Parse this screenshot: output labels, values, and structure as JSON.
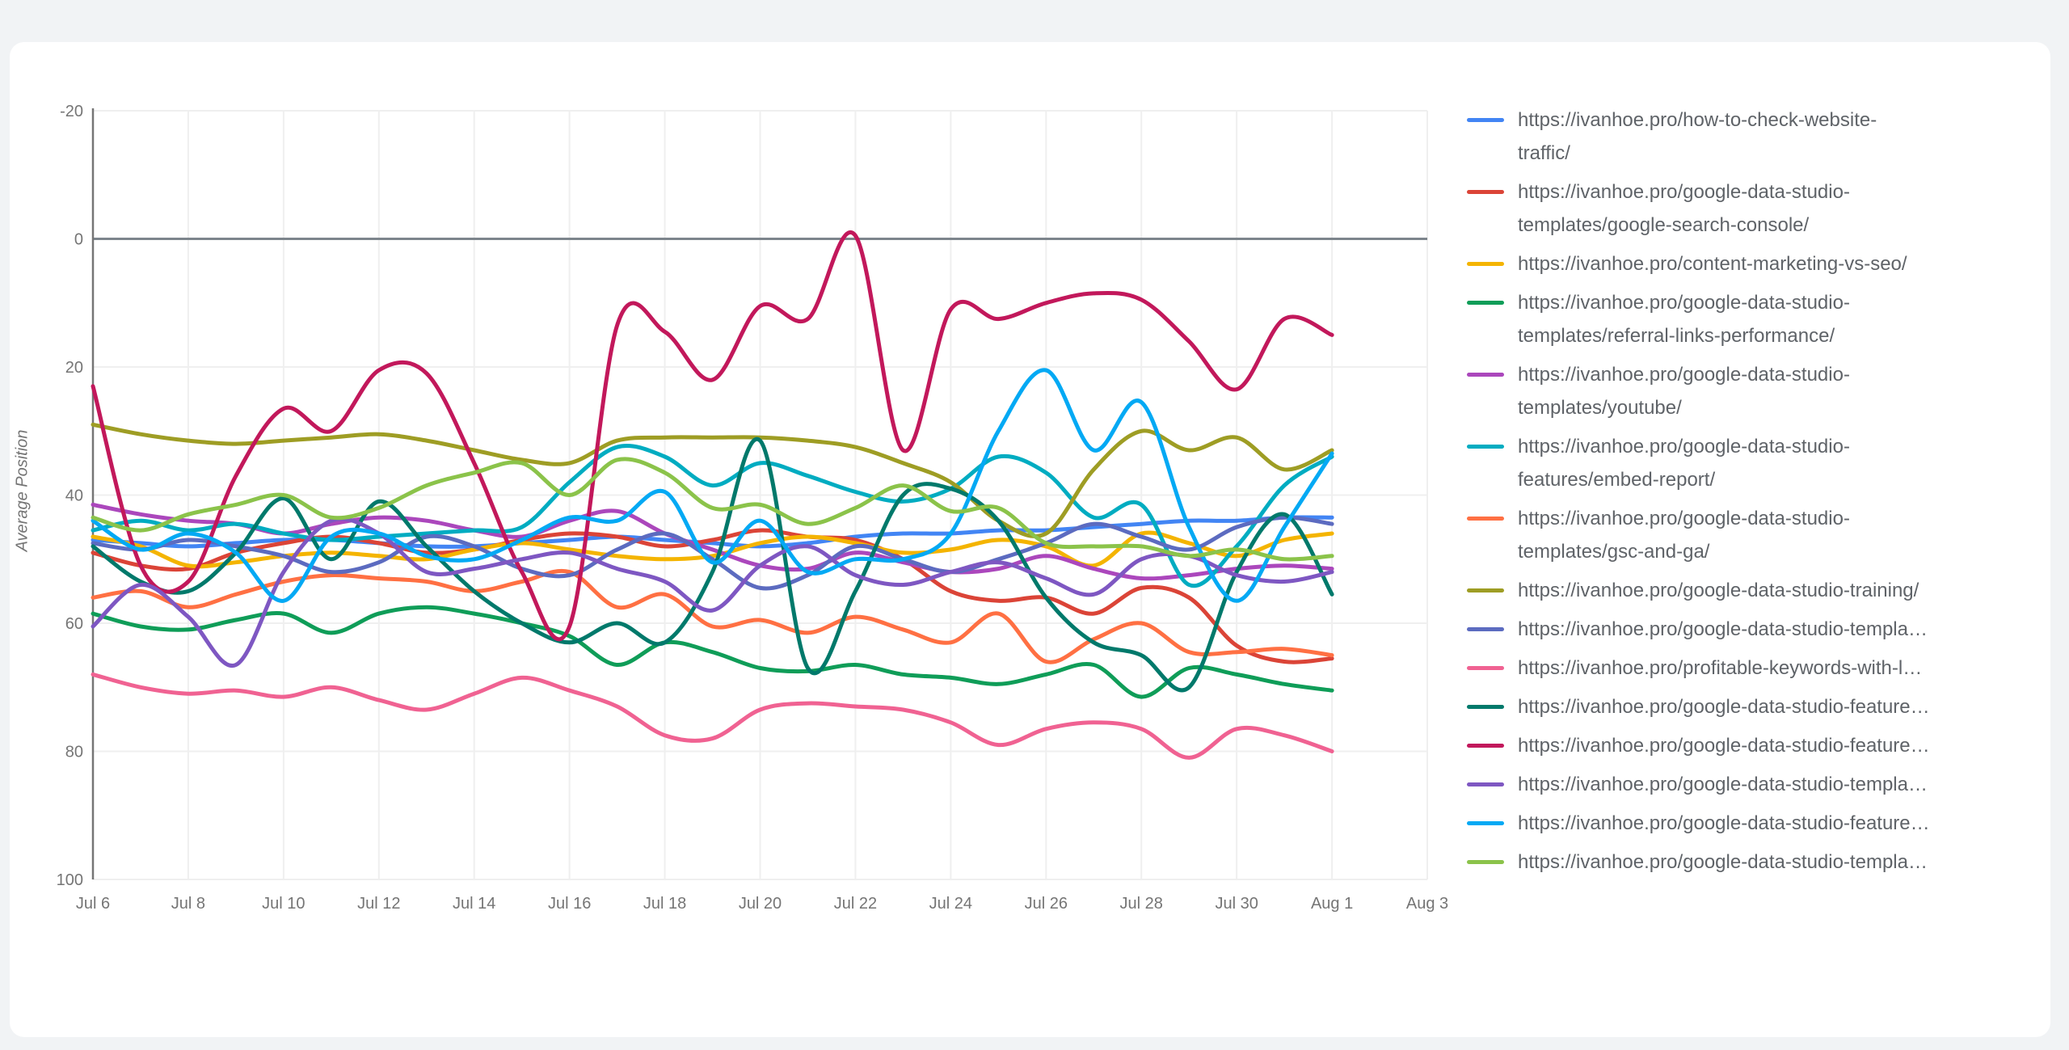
{
  "page": {
    "background_color": "#f1f3f5",
    "card_background_color": "#ffffff"
  },
  "chart_data": {
    "type": "line",
    "title": "",
    "xlabel": "",
    "ylabel": "Average Position",
    "y_ticks": [
      -20,
      0,
      20,
      40,
      60,
      80,
      100
    ],
    "y_range": [
      -20,
      100
    ],
    "y_axis_inverted_downward": true,
    "grid": true,
    "legend_position": "right",
    "x_axis_tick_labels": [
      "Jul 6",
      "Jul 8",
      "Jul 10",
      "Jul 12",
      "Jul 14",
      "Jul 16",
      "Jul 18",
      "Jul 20",
      "Jul 22",
      "Jul 24",
      "Jul 26",
      "Jul 28",
      "Jul 30",
      "Aug 1",
      "Aug 3"
    ],
    "point_dates": [
      "Jul 6",
      "Jul 7",
      "Jul 8",
      "Jul 9",
      "Jul 10",
      "Jul 11",
      "Jul 12",
      "Jul 13",
      "Jul 14",
      "Jul 15",
      "Jul 16",
      "Jul 17",
      "Jul 18",
      "Jul 19",
      "Jul 20",
      "Jul 21",
      "Jul 22",
      "Jul 23",
      "Jul 24",
      "Jul 25",
      "Jul 26",
      "Jul 27",
      "Jul 28",
      "Jul 29",
      "Jul 30",
      "Jul 31",
      "Aug 1"
    ],
    "style": {
      "grid_color": "#efefef",
      "zero_line_color": "#7d858c",
      "axis_line_color": "#757575",
      "tick_label_color": "#757575",
      "legend_text_color": "#5f6368",
      "line_width": 5
    },
    "series": [
      {
        "label": "https://ivanhoe.pro/how-to-check-website-\ntraffic/",
        "color": "#4285F4",
        "values": [
          47,
          47.5,
          48,
          47.5,
          47,
          47,
          47.5,
          48,
          48,
          47.5,
          47,
          46.5,
          47,
          47.5,
          48,
          47.5,
          46.5,
          46,
          46,
          45.5,
          45.5,
          45,
          44.5,
          44,
          44,
          43.5,
          43.5
        ]
      },
      {
        "label": "https://ivanhoe.pro/google-data-studio-\ntemplates/google-search-console/",
        "color": "#DB4437",
        "values": [
          49,
          51,
          51.5,
          49,
          47.5,
          46.5,
          47.5,
          49,
          48.5,
          47,
          46,
          46.5,
          48,
          47,
          45.5,
          46.5,
          47,
          50,
          55,
          56.5,
          56,
          58.5,
          54.5,
          56,
          63.5,
          66,
          65.5
        ]
      },
      {
        "label": "https://ivanhoe.pro/content-marketing-vs-seo/",
        "color": "#F4B400",
        "values": [
          46.5,
          48,
          51,
          50.5,
          49.5,
          49,
          49.5,
          50,
          48.5,
          47.5,
          48.5,
          49.5,
          50,
          49.5,
          47.5,
          46.5,
          47.5,
          49,
          48.5,
          47,
          48,
          51,
          46,
          47.5,
          49.5,
          47,
          46
        ]
      },
      {
        "label": "https://ivanhoe.pro/google-data-studio-\ntemplates/referral-links-performance/",
        "color": "#0F9D58",
        "values": [
          58.5,
          60.5,
          61,
          59.5,
          58.5,
          61.5,
          58.5,
          57.5,
          58.5,
          60,
          62,
          66.5,
          63,
          64.5,
          67,
          67.5,
          66.5,
          68,
          68.5,
          69.5,
          68,
          66.5,
          71.5,
          67,
          68,
          69.5,
          70.5
        ]
      },
      {
        "label": "https://ivanhoe.pro/google-data-studio-\ntemplates/youtube/",
        "color": "#AB47BC",
        "values": [
          41.5,
          43,
          44,
          44.5,
          46,
          44.5,
          43.5,
          44,
          45.5,
          46.5,
          44,
          42.5,
          46,
          48.5,
          51,
          51.5,
          49,
          50.5,
          52,
          51.5,
          49.5,
          51.5,
          53,
          52.5,
          51.5,
          51,
          51.5
        ]
      },
      {
        "label": "https://ivanhoe.pro/google-data-studio-\nfeatures/embed-report/",
        "color": "#00ACC1",
        "values": [
          45.5,
          44,
          45.5,
          44.5,
          46,
          47,
          46.5,
          46,
          45.5,
          45,
          38,
          32.5,
          34,
          38.5,
          35,
          37,
          39.5,
          41,
          39,
          34,
          36.5,
          43.5,
          41.5,
          54,
          48,
          38.5,
          34
        ]
      },
      {
        "label": "https://ivanhoe.pro/google-data-studio-\ntemplates/gsc-and-ga/",
        "color": "#FF7043",
        "values": [
          56,
          55,
          57.5,
          55.5,
          53.5,
          52.5,
          53,
          53.5,
          55,
          53.5,
          52,
          57.5,
          55.5,
          60.5,
          59.5,
          61.5,
          59,
          61,
          63,
          58.5,
          66,
          62.5,
          60,
          64.5,
          64.5,
          64,
          65
        ]
      },
      {
        "label": "https://ivanhoe.pro/google-data-studio-training/",
        "color": "#9E9D24",
        "values": [
          29,
          30.5,
          31.5,
          32,
          31.5,
          31,
          30.5,
          31.5,
          33,
          34.5,
          35,
          31.5,
          31,
          31,
          31,
          31.5,
          32.5,
          35,
          38,
          44,
          46,
          36,
          30,
          33,
          31,
          36,
          33
        ]
      },
      {
        "label": "https://ivanhoe.pro/google-data-studio-templa…",
        "color": "#5C6BC0",
        "values": [
          47.5,
          48.5,
          47,
          48,
          49.5,
          52,
          50.5,
          46.5,
          48,
          51.5,
          52.5,
          48.5,
          46,
          50,
          54.5,
          52.5,
          48,
          50,
          52,
          50,
          47.5,
          44.5,
          46.5,
          48.5,
          45,
          43.5,
          44.5
        ]
      },
      {
        "label": "https://ivanhoe.pro/profitable-keywords-with-l…",
        "color": "#F06292",
        "values": [
          68,
          70,
          71,
          70.5,
          71.5,
          70,
          72,
          73.5,
          71,
          68.5,
          70.5,
          73,
          77.5,
          78,
          73.5,
          72.5,
          73,
          73.5,
          75.5,
          79,
          76.5,
          75.5,
          76.5,
          81,
          76.5,
          77.5,
          80
        ]
      },
      {
        "label": "https://ivanhoe.pro/google-data-studio-feature…",
        "color": "#00796B",
        "values": [
          48,
          53.5,
          55,
          49,
          40.5,
          50,
          41,
          48,
          55,
          60,
          63,
          60,
          63,
          52,
          31.5,
          67,
          55,
          40,
          39,
          44,
          56,
          63,
          65,
          70,
          52,
          43,
          55.5
        ]
      },
      {
        "label": "https://ivanhoe.pro/google-data-studio-feature…",
        "color": "#C2185B",
        "values": [
          23,
          51,
          53.5,
          37,
          26.5,
          30,
          20.5,
          21,
          35,
          52,
          60.5,
          13.5,
          14.5,
          22,
          10.5,
          12.5,
          -0.5,
          33,
          11,
          12.5,
          10,
          8.5,
          9.5,
          16,
          23.5,
          12.5,
          15
        ]
      },
      {
        "label": "https://ivanhoe.pro/google-data-studio-templa…",
        "color": "#7E57C2",
        "values": [
          60.5,
          54,
          59,
          66.5,
          52,
          44,
          46,
          52,
          51.5,
          50,
          49,
          51.5,
          53.5,
          58,
          51,
          48,
          52.5,
          54,
          52,
          50.5,
          53,
          55.5,
          50,
          49.5,
          52.5,
          53.5,
          52
        ]
      },
      {
        "label": "https://ivanhoe.pro/google-data-studio-feature…",
        "color": "#03A9F4",
        "values": [
          44,
          48.5,
          46,
          49,
          56.5,
          46.5,
          46,
          49.5,
          50,
          47,
          43.5,
          44,
          39.5,
          50.5,
          44,
          52,
          50,
          50,
          46,
          30,
          20.5,
          33,
          25.5,
          45,
          56.5,
          45,
          33.5
        ]
      },
      {
        "label": "https://ivanhoe.pro/google-data-studio-templa…",
        "color": "#8BC34A",
        "values": [
          43.5,
          45.5,
          43,
          41.5,
          40,
          43.5,
          42,
          38.5,
          36.5,
          35,
          40,
          34.5,
          36.5,
          42,
          41.5,
          44.5,
          42,
          38.5,
          42.5,
          42,
          47.5,
          48,
          48,
          49.5,
          48.5,
          50,
          49.5
        ]
      }
    ]
  }
}
